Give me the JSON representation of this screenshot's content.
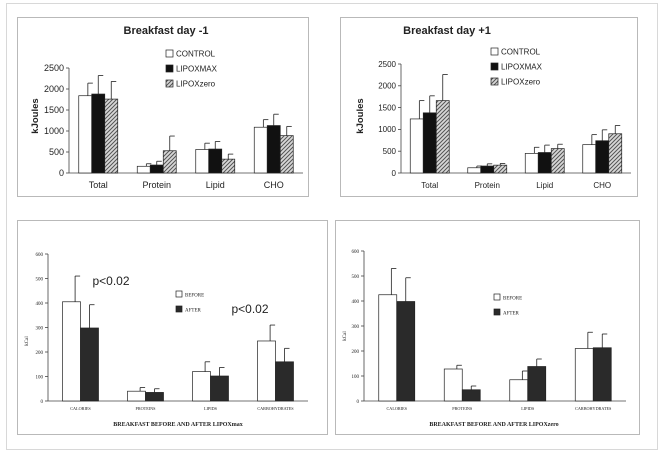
{
  "colors": {
    "control": "#ffffff",
    "lipoxmax": "#111111",
    "lipoxzero": "#a8a8a8",
    "before": "#ffffff",
    "after": "#2a2a2a",
    "axis": "#444444"
  },
  "chart_data": [
    {
      "type": "bar",
      "title": "Breakfast day -1",
      "ylabel": "kJoules",
      "xlabel": "",
      "categories": [
        "Total",
        "Protein",
        "Lipid",
        "CHO"
      ],
      "ylim": [
        0,
        2500
      ],
      "yticks": [
        "0",
        "500",
        "1000",
        "1500",
        "2000",
        "2500"
      ],
      "legend_position": "top-right",
      "series": [
        {
          "name": "CONTROL",
          "values": [
            1840,
            160,
            560,
            1090
          ],
          "errors": [
            300,
            60,
            150,
            180
          ]
        },
        {
          "name": "LIPOXMAX",
          "values": [
            1880,
            190,
            570,
            1130
          ],
          "errors": [
            440,
            90,
            180,
            270
          ]
        },
        {
          "name": "LIPOXzero",
          "values": [
            1760,
            530,
            330,
            890
          ],
          "errors": [
            420,
            350,
            120,
            220
          ]
        }
      ]
    },
    {
      "type": "bar",
      "title": "Breakfast day +1",
      "ylabel": "kJoules",
      "xlabel": "",
      "categories": [
        "Total",
        "Protein",
        "Lipid",
        "CHO"
      ],
      "ylim": [
        0,
        2500
      ],
      "yticks": [
        "0",
        "500",
        "1000",
        "1500",
        "2000",
        "2500"
      ],
      "legend_position": "top-right",
      "series": [
        {
          "name": "CONTROL",
          "values": [
            1240,
            120,
            450,
            650
          ],
          "errors": [
            420,
            40,
            140,
            230
          ]
        },
        {
          "name": "LIPOXMAX",
          "values": [
            1380,
            160,
            470,
            740
          ],
          "errors": [
            390,
            50,
            170,
            250
          ]
        },
        {
          "name": "LIPOXzero",
          "values": [
            1660,
            180,
            560,
            900
          ],
          "errors": [
            600,
            40,
            100,
            190
          ]
        }
      ]
    },
    {
      "type": "bar",
      "title": "",
      "ylabel": "kCal",
      "xlabel": "BREAKFAST BEFORE AND AFTER LIPOXmax",
      "categories": [
        "CALORIES",
        "PROTEINS",
        "LIPIDS",
        "CARBOHYDRATES"
      ],
      "ylim": [
        0,
        600
      ],
      "yticks": [
        "0",
        "100",
        "200",
        "300",
        "400",
        "500",
        "600"
      ],
      "legend_position": "center",
      "annotations": [
        "p<0.02",
        "p<0.02"
      ],
      "series": [
        {
          "name": "BEFORE",
          "values": [
            405,
            40,
            120,
            245
          ],
          "errors": [
            105,
            15,
            40,
            65
          ]
        },
        {
          "name": "AFTER",
          "values": [
            298,
            35,
            102,
            160
          ],
          "errors": [
            95,
            15,
            35,
            55
          ]
        }
      ]
    },
    {
      "type": "bar",
      "title": "",
      "ylabel": "kCal",
      "xlabel": "BREAKFAST BEFORE AND AFTER LIPOXzero",
      "categories": [
        "CALORIES",
        "PROTEINS",
        "LIPIDS",
        "CARBOHYDRATES"
      ],
      "ylim": [
        0,
        600
      ],
      "yticks": [
        "0",
        "100",
        "200",
        "300",
        "400",
        "500",
        "600"
      ],
      "legend_position": "center",
      "series": [
        {
          "name": "BEFORE",
          "values": [
            425,
            128,
            85,
            210
          ],
          "errors": [
            105,
            15,
            35,
            65
          ]
        },
        {
          "name": "AFTER",
          "values": [
            398,
            45,
            138,
            213
          ],
          "errors": [
            95,
            15,
            30,
            55
          ]
        }
      ]
    }
  ]
}
